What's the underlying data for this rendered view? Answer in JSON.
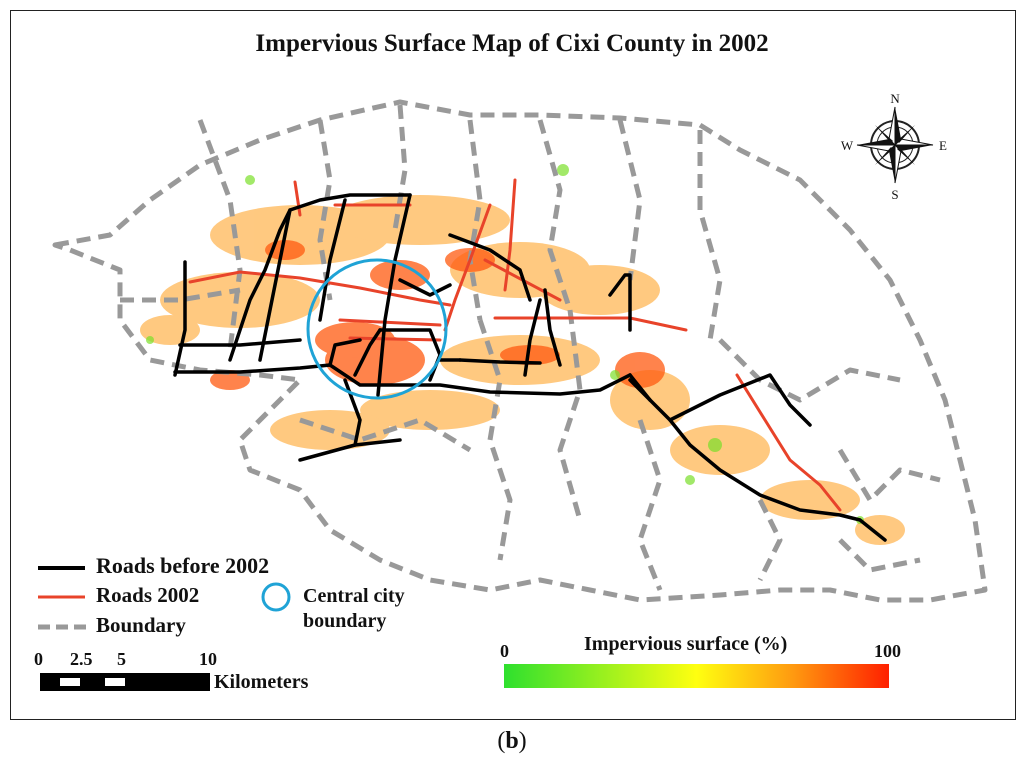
{
  "map": {
    "title": "Impervious Surface Map of Cixi County in 2002",
    "compass": {
      "n": "N",
      "s": "S",
      "e": "E",
      "w": "W"
    }
  },
  "legend": {
    "roads_before": "Roads before 2002",
    "roads_2002": "Roads 2002",
    "boundary": "Boundary",
    "central_city_line1": "Central city",
    "central_city_line2": "boundary"
  },
  "scale_bar": {
    "ticks": [
      "0",
      "2.5",
      "5",
      "10"
    ],
    "unit": "Kilometers"
  },
  "color_bar": {
    "title": "Impervious surface (%)",
    "min": "0",
    "max": "100"
  },
  "caption": {
    "open": "(",
    "letter": "b",
    "close": ")"
  },
  "colors": {
    "roads_before": "#000000",
    "roads_2002": "#e8432a",
    "boundary": "#999999",
    "central_city": "#1fa3d6",
    "impervious_low": "#2ee02e",
    "impervious_mid": "#ffff00",
    "impervious_high": "#ff2000"
  }
}
